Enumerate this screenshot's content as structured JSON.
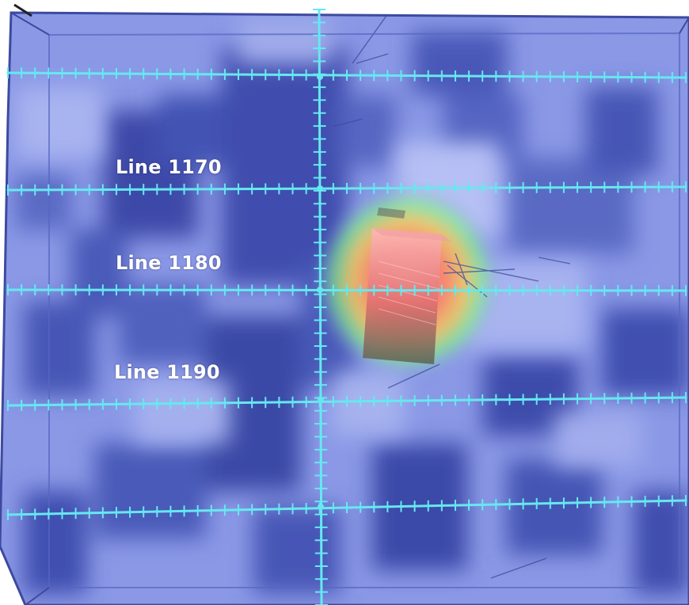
{
  "labels": {
    "line_1170": "Line 1170",
    "line_1180": "Line 1180",
    "line_1190": "Line 1190"
  },
  "colors": {
    "background_light": "#8f9de8",
    "background_mid": "#6b7bd6",
    "background_dark": "#3b4aa6",
    "survey_line": "#66e8f0",
    "anomaly_core": "#ff8a8a",
    "anomaly_halo": "#ff6a4a",
    "anomaly_outer": "#7ff07f",
    "label_text": "#ffffff"
  }
}
